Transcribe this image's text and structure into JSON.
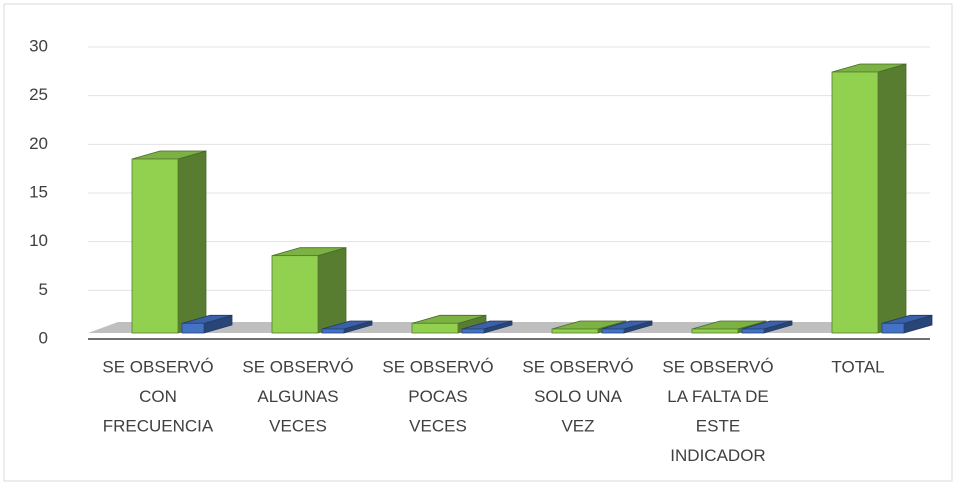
{
  "chart_data": {
    "type": "bar3d",
    "categories": [
      [
        "SE OBSERVÓ",
        "CON",
        "FRECUENCIA"
      ],
      [
        "SE OBSERVÓ",
        "ALGUNAS",
        "VECES"
      ],
      [
        "SE OBSERVÓ",
        "POCAS",
        "VECES"
      ],
      [
        "SE OBSERVÓ",
        "SOLO UNA",
        "VEZ"
      ],
      [
        "SE OBSERVÓ",
        "LA FALTA DE",
        "ESTE",
        "INDICADOR"
      ],
      [
        "TOTAL"
      ]
    ],
    "series": [
      {
        "color": "#92d050",
        "values": [
          18,
          8,
          1,
          0,
          0,
          27
        ]
      },
      {
        "color": "#4472c4",
        "values": [
          1,
          0,
          0,
          0,
          0,
          1
        ]
      }
    ],
    "ylim": [
      0,
      30
    ],
    "yticks": [
      0,
      5,
      10,
      15,
      20,
      25,
      30
    ],
    "grid": true
  }
}
